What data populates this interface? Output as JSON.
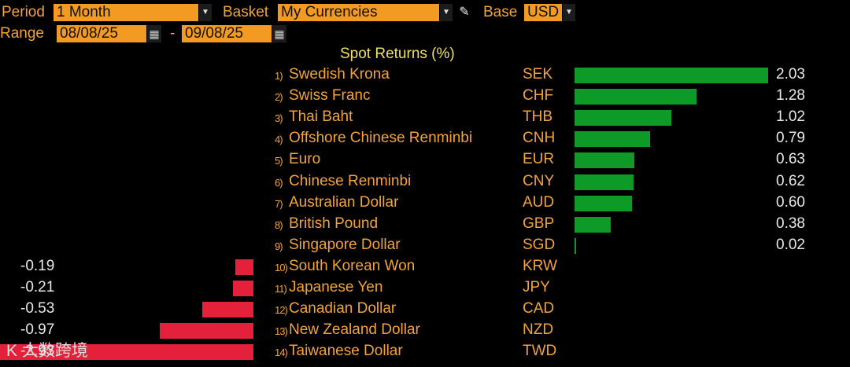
{
  "toolbar": {
    "period_label": "Period",
    "period_value": "1 Month",
    "basket_label": "Basket",
    "basket_value": "My Currencies",
    "base_label": "Base",
    "base_value": "USD",
    "range_label": "Range",
    "range_start": "08/08/25",
    "range_sep": "-",
    "range_end": "09/08/25"
  },
  "icons": {
    "dropdown": "chevron-down-icon",
    "edit": "pencil-icon",
    "calendar": "calendar-icon"
  },
  "colors": {
    "positive": "#0e9a27",
    "negative": "#e5203a",
    "label": "#f2a43a",
    "title": "#f0e060"
  },
  "watermark": "K 大数跨境",
  "chart_data": {
    "type": "bar",
    "title": "Spot Returns (%)",
    "categories": [
      "Swedish Krona",
      "Swiss Franc",
      "Thai Baht",
      "Offshore Chinese Renminbi",
      "Euro",
      "Chinese Renminbi",
      "Australian Dollar",
      "British Pound",
      "Singapore Dollar",
      "South Korean Won",
      "Japanese Yen",
      "Canadian Dollar",
      "New Zealand Dollar",
      "Taiwanese Dollar"
    ],
    "ranks": [
      "1)",
      "2)",
      "3)",
      "4)",
      "5)",
      "6)",
      "7)",
      "8)",
      "9)",
      "10)",
      "11)",
      "12)",
      "13)",
      "14)"
    ],
    "codes": [
      "SEK",
      "CHF",
      "THB",
      "CNH",
      "EUR",
      "CNY",
      "AUD",
      "GBP",
      "SGD",
      "KRW",
      "JPY",
      "CAD",
      "NZD",
      "TWD"
    ],
    "values": [
      2.03,
      1.28,
      1.02,
      0.79,
      0.63,
      0.62,
      0.6,
      0.38,
      0.02,
      -0.19,
      -0.21,
      -0.53,
      -0.97,
      -2.93
    ],
    "value_labels": [
      "2.03",
      "1.28",
      "1.02",
      "0.79",
      "0.63",
      "0.62",
      "0.60",
      "0.38",
      "0.02",
      "-0.19",
      "-0.21",
      "-0.53",
      "-0.97",
      "-2.93"
    ]
  }
}
